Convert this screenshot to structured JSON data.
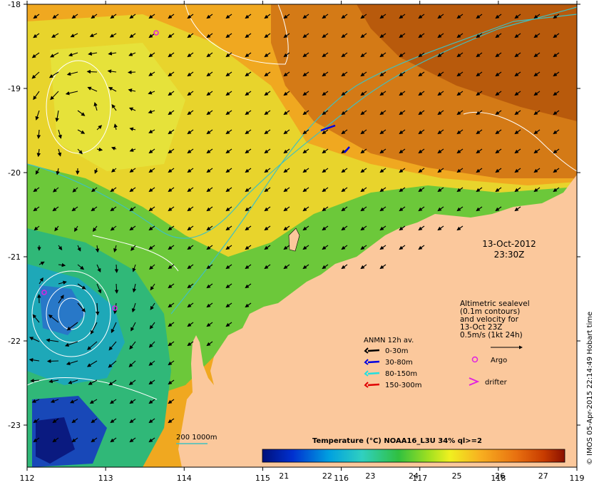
{
  "map": {
    "lon_range": [
      112,
      119
    ],
    "lat_range": [
      -23.5,
      -18
    ],
    "x_ticks": [
      "112",
      "113",
      "114",
      "115",
      "116",
      "117",
      "118",
      "119"
    ],
    "y_ticks": [
      "-18",
      "-19",
      "-20",
      "-21",
      "-22",
      "-23"
    ],
    "land_color": "#fbc89c",
    "ocean_colors": {
      "warm": "#c86a10",
      "orange": "#f0a020",
      "yellow": "#e8d828",
      "green": "#50c838",
      "cyan": "#30c0c0",
      "blue": "#1850c0",
      "navy": "#0a1a80"
    }
  },
  "timestamp": {
    "date": "13-Oct-2012",
    "time": "23:30Z"
  },
  "altimetry_note": {
    "lines": [
      "Altimetric sealevel",
      "(0.1m contours)",
      "and velocity for",
      "13-Oct 23Z",
      "0.5m/s (1kt 24h)"
    ]
  },
  "anmn_legend": {
    "title": "ANMN 12h av.",
    "items": [
      {
        "label": "0-30m",
        "color": "#000000"
      },
      {
        "label": "30-80m",
        "color": "#0000e0"
      },
      {
        "label": "80-150m",
        "color": "#20e0e0"
      },
      {
        "label": "150-300m",
        "color": "#e00000"
      }
    ]
  },
  "symbol_legend": {
    "argo_label": "Argo",
    "argo_color": "#e020e0",
    "drifter_label": "drifter",
    "drifter_color": "#e020e0"
  },
  "isobath_legend": {
    "label": "200  1000m",
    "color": "#40c0c0"
  },
  "colorbar": {
    "title": "Temperature (°C) NOAA16_L3U 34% ql>=2",
    "ticks": [
      "21",
      "22",
      "23",
      "24",
      "25",
      "26",
      "27"
    ],
    "range": [
      20.5,
      27.5
    ]
  },
  "credit": "© IMOS 05-Apr-2015 22:14:49 Hobart time"
}
